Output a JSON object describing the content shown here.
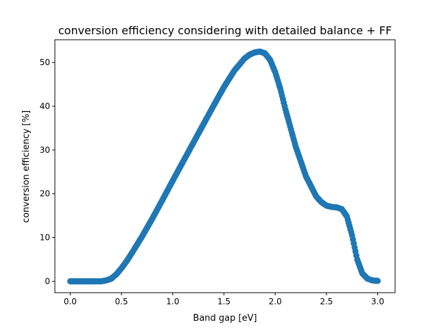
{
  "chart_data": {
    "type": "scatter",
    "title": "conversion efficiency considering with detailed balance + FF",
    "xlabel": "Band gap [eV]",
    "ylabel": "conversion efficiency [%]",
    "xlim": [
      -0.15,
      3.17
    ],
    "ylim": [
      -2.6,
      55.2
    ],
    "xticks": [
      0.0,
      0.5,
      1.0,
      1.5,
      2.0,
      2.5,
      3.0
    ],
    "xtick_labels": [
      "0.0",
      "0.5",
      "1.0",
      "1.5",
      "2.0",
      "2.5",
      "3.0"
    ],
    "yticks": [
      0,
      10,
      20,
      30,
      40,
      50
    ],
    "ytick_labels": [
      "0",
      "10",
      "20",
      "30",
      "40",
      "50"
    ],
    "grid": false,
    "legend": "none",
    "marker_color": "#1f77b4",
    "series": [
      {
        "x": [
          0.0,
          0.1,
          0.2,
          0.3,
          0.35,
          0.4,
          0.45,
          0.5,
          0.55,
          0.6,
          0.7,
          0.8,
          0.9,
          1.0,
          1.1,
          1.2,
          1.3,
          1.4,
          1.5,
          1.6,
          1.7,
          1.75,
          1.8,
          1.85,
          1.9,
          1.95,
          2.0,
          2.05,
          2.1,
          2.2,
          2.3,
          2.4,
          2.45,
          2.5,
          2.55,
          2.6,
          2.65,
          2.7,
          2.75,
          2.8,
          2.85,
          2.9,
          2.95,
          3.0
        ],
        "y": [
          0.0,
          0.0,
          0.0,
          0.0,
          0.2,
          0.6,
          1.6,
          3.0,
          4.6,
          6.4,
          10.2,
          14.3,
          18.6,
          23.0,
          27.3,
          31.6,
          35.9,
          40.2,
          44.4,
          48.1,
          50.9,
          51.8,
          52.3,
          52.5,
          52.1,
          50.6,
          47.8,
          44.0,
          39.3,
          30.8,
          24.0,
          19.4,
          18.1,
          17.3,
          17.0,
          16.9,
          16.5,
          14.8,
          10.5,
          5.0,
          1.8,
          0.6,
          0.2,
          0.1
        ]
      }
    ]
  }
}
